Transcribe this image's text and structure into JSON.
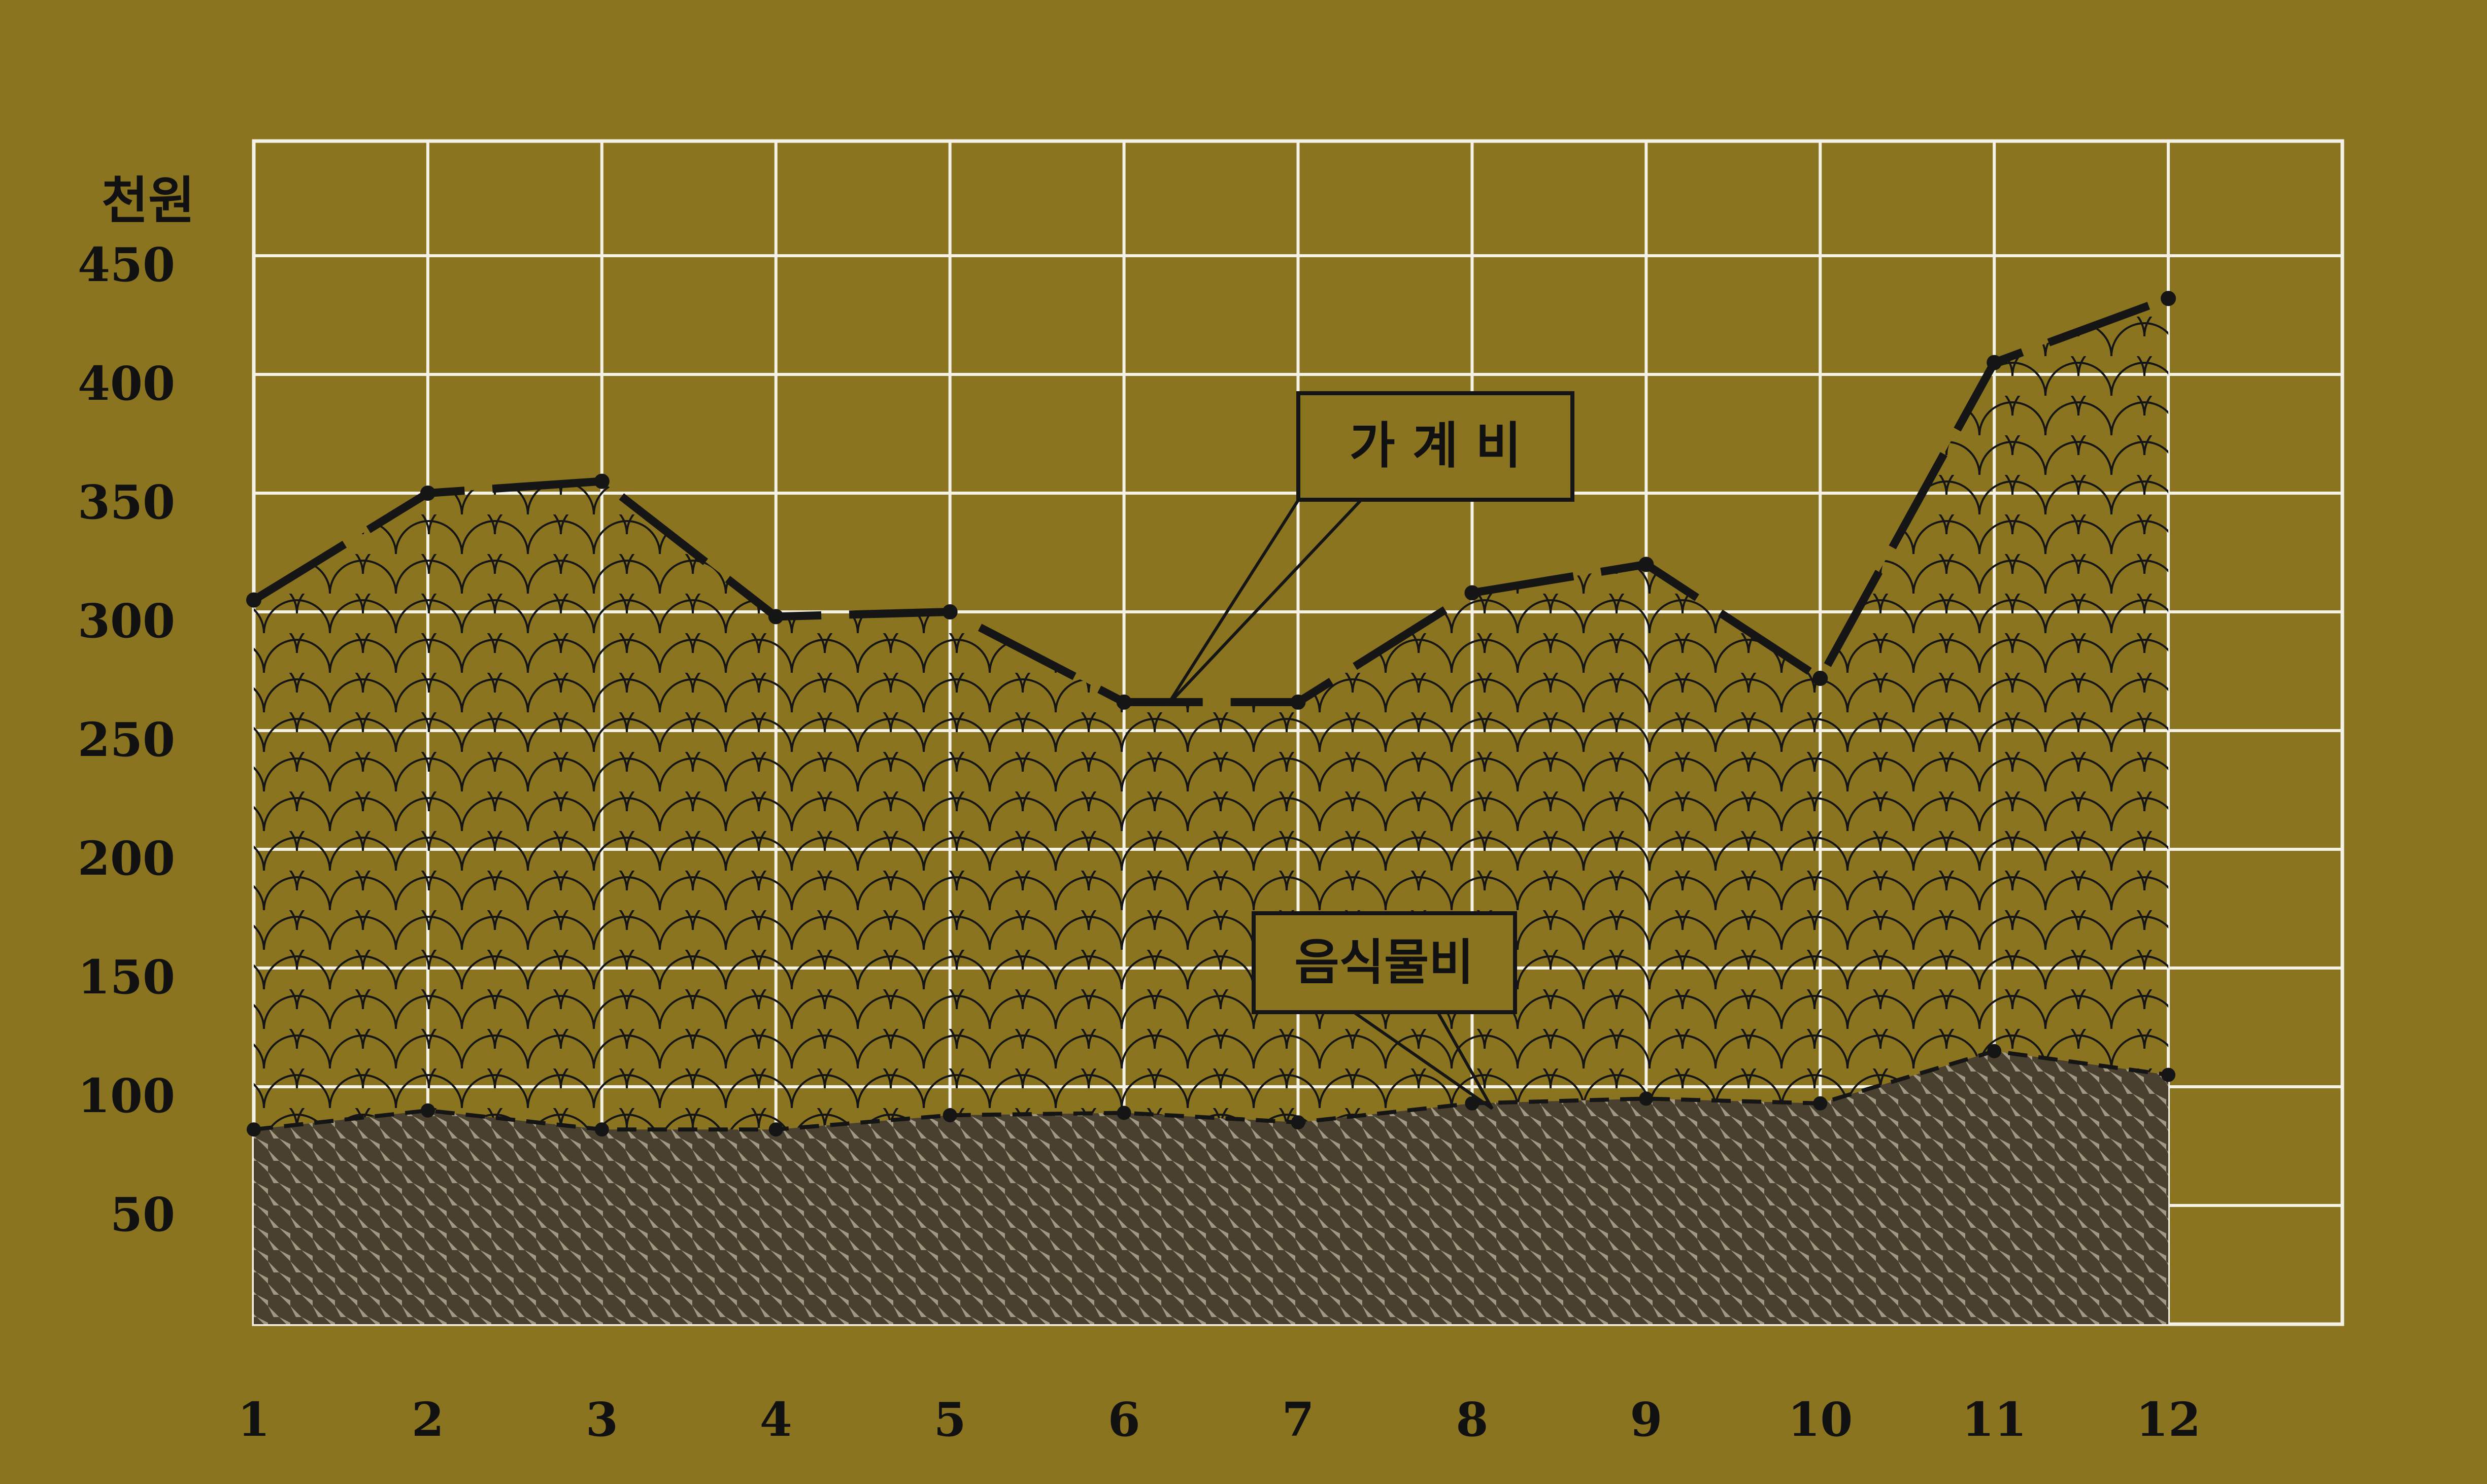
{
  "colors": {
    "background": "#8a7420",
    "grid": "#f4f1e6",
    "ink": "#151515",
    "label_box": "#8a7420",
    "food_fill_dark": "#4a4030",
    "food_fill_light": "#a09880"
  },
  "chart_data": {
    "type": "area",
    "grid": true,
    "y_unit_label": "천원",
    "x": [
      1,
      2,
      3,
      4,
      5,
      6,
      7,
      8,
      9,
      10,
      11,
      12
    ],
    "x_tick_labels": [
      "1",
      "2",
      "3",
      "4",
      "5",
      "6",
      "7",
      "8",
      "9",
      "10",
      "11",
      "12"
    ],
    "y_ticks": [
      50,
      100,
      150,
      200,
      250,
      300,
      350,
      400,
      450
    ],
    "y_tick_labels": [
      "50",
      "100",
      "150",
      "200",
      "250",
      "300",
      "350",
      "400",
      "450"
    ],
    "ylim": [
      0,
      470
    ],
    "xlim": [
      1,
      12.3
    ],
    "series": [
      {
        "name": "가 계 비",
        "values": [
          305,
          350,
          355,
          298,
          300,
          262,
          262,
          308,
          320,
          272,
          405,
          432
        ]
      },
      {
        "name": "음식물비",
        "values": [
          82,
          90,
          82,
          82,
          88,
          89,
          85,
          93,
          95,
          93,
          115,
          105
        ]
      }
    ]
  }
}
